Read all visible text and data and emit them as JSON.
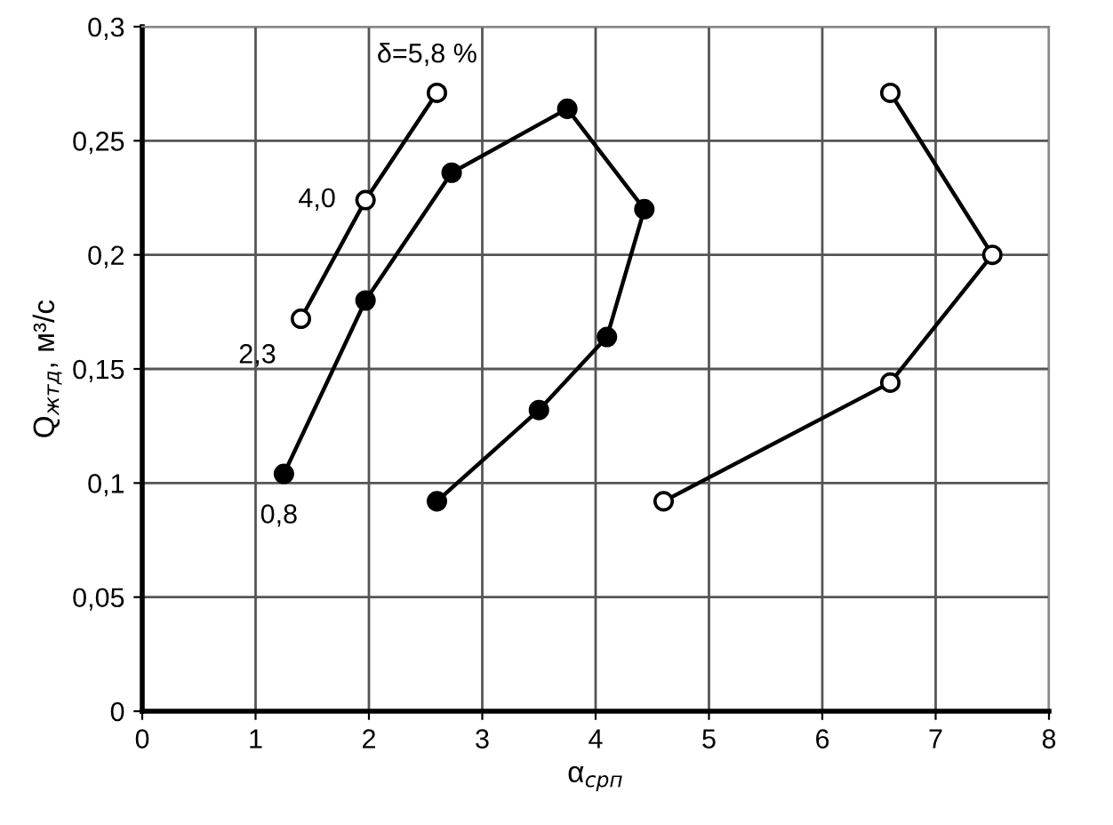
{
  "chart_data": {
    "type": "line",
    "xlabel": "α$_{срп}$",
    "ylabel": "Q$_{жтд}$, м³/с",
    "xlim": [
      0,
      8
    ],
    "xticks": [
      0,
      1,
      2,
      3,
      4,
      5,
      6,
      7,
      8
    ],
    "ylim": [
      0,
      0.3
    ],
    "yticks": [
      {
        "value": 0,
        "label": "0"
      },
      {
        "value": 0.05,
        "label": "0,05"
      },
      {
        "value": 0.1,
        "label": "0,1"
      },
      {
        "value": 0.15,
        "label": "0,15"
      },
      {
        "value": 0.2,
        "label": "0,2"
      },
      {
        "value": 0.25,
        "label": "0,25"
      },
      {
        "value": 0.3,
        "label": "0,3"
      }
    ],
    "grid": true,
    "marker": "circle",
    "line_style": "solid",
    "series": [
      {
        "color": "#000000",
        "colors": [
          "#ffffff",
          "#ffffff",
          "#ffffff"
        ],
        "x": [
          1.4,
          1.97,
          2.6
        ],
        "values": [
          0.172,
          0.224,
          0.271
        ]
      },
      {
        "color": "#000000",
        "colors": [
          "#000000",
          "#000000",
          "#000000",
          "#000000",
          "#000000",
          "#000000",
          "#000000",
          "#000000"
        ],
        "x": [
          1.25,
          1.97,
          2.73,
          3.75,
          4.43,
          4.1,
          3.5,
          2.6
        ],
        "values": [
          0.104,
          0.18,
          0.236,
          0.264,
          0.22,
          0.164,
          0.132,
          0.092
        ]
      },
      {
        "color": "#000000",
        "colors": [
          "#ffffff",
          "#ffffff",
          "#ffffff",
          "#ffffff"
        ],
        "x": [
          4.6,
          6.6,
          7.5,
          6.6
        ],
        "values": [
          0.092,
          0.144,
          0.2,
          0.271
        ]
      }
    ],
    "annotations": [
      {
        "text": "δ=5,8 %",
        "x": 2.6,
        "y": 0.271
      },
      {
        "text": "4,0",
        "x": 1.97,
        "y": 0.224
      },
      {
        "text": "2,3",
        "x": 1.4,
        "y": 0.172
      },
      {
        "text": "0,8",
        "x": 1.25,
        "y": 0.104
      }
    ]
  }
}
